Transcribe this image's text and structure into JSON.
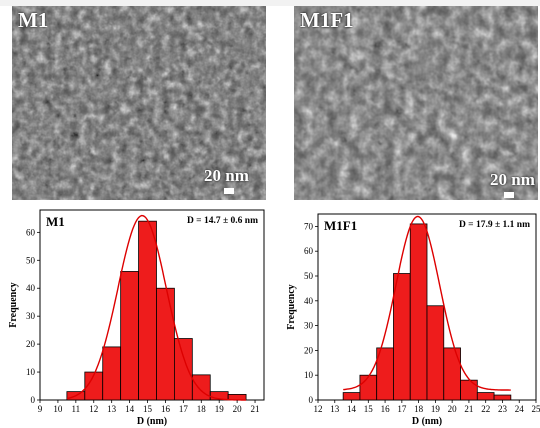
{
  "sem_panels": [
    {
      "label": "M1",
      "scale_bar": "20 nm"
    },
    {
      "label": "M1F1",
      "scale_bar": "20 nm"
    }
  ],
  "chart_data": [
    {
      "type": "bar",
      "panel_label": "M1",
      "annotation": "D = 14.7 ± 0.6 nm",
      "xlabel": "D (nm)",
      "ylabel": "Frequency",
      "xlim": [
        9,
        21.5
      ],
      "ylim": [
        0,
        68
      ],
      "xticks": [
        9,
        10,
        11,
        12,
        13,
        14,
        15,
        16,
        17,
        18,
        19,
        20,
        21
      ],
      "yticks": [
        0,
        10,
        20,
        30,
        40,
        50,
        60
      ],
      "bar_centers": [
        11,
        12,
        13,
        14,
        15,
        16,
        17,
        18,
        19,
        20
      ],
      "values": [
        3,
        10,
        19,
        46,
        64,
        40,
        22,
        9,
        3,
        2
      ],
      "fit": {
        "type": "gaussian",
        "amplitude": 66,
        "mean": 14.7,
        "sigma": 1.35,
        "baseline": 0
      },
      "bar_color": "#ee1c1c",
      "fit_color": "#dd0000"
    },
    {
      "type": "bar",
      "panel_label": "M1F1",
      "annotation": "D = 17.9 ± 1.1 nm",
      "xlabel": "D (nm)",
      "ylabel": "Frequency",
      "xlim": [
        12,
        25
      ],
      "ylim": [
        0,
        75
      ],
      "xticks": [
        12,
        13,
        14,
        15,
        16,
        17,
        18,
        19,
        20,
        21,
        22,
        23,
        24,
        25
      ],
      "yticks": [
        0,
        10,
        20,
        30,
        40,
        50,
        60,
        70
      ],
      "bar_centers": [
        14,
        15,
        16,
        17,
        18,
        19,
        20,
        21,
        22,
        23
      ],
      "values": [
        3,
        10,
        21,
        51,
        71,
        38,
        21,
        8,
        3,
        2
      ],
      "fit": {
        "type": "gaussian",
        "amplitude": 70,
        "mean": 17.95,
        "sigma": 1.3,
        "baseline": 4
      },
      "bar_color": "#ee1c1c",
      "fit_color": "#dd0000"
    }
  ]
}
